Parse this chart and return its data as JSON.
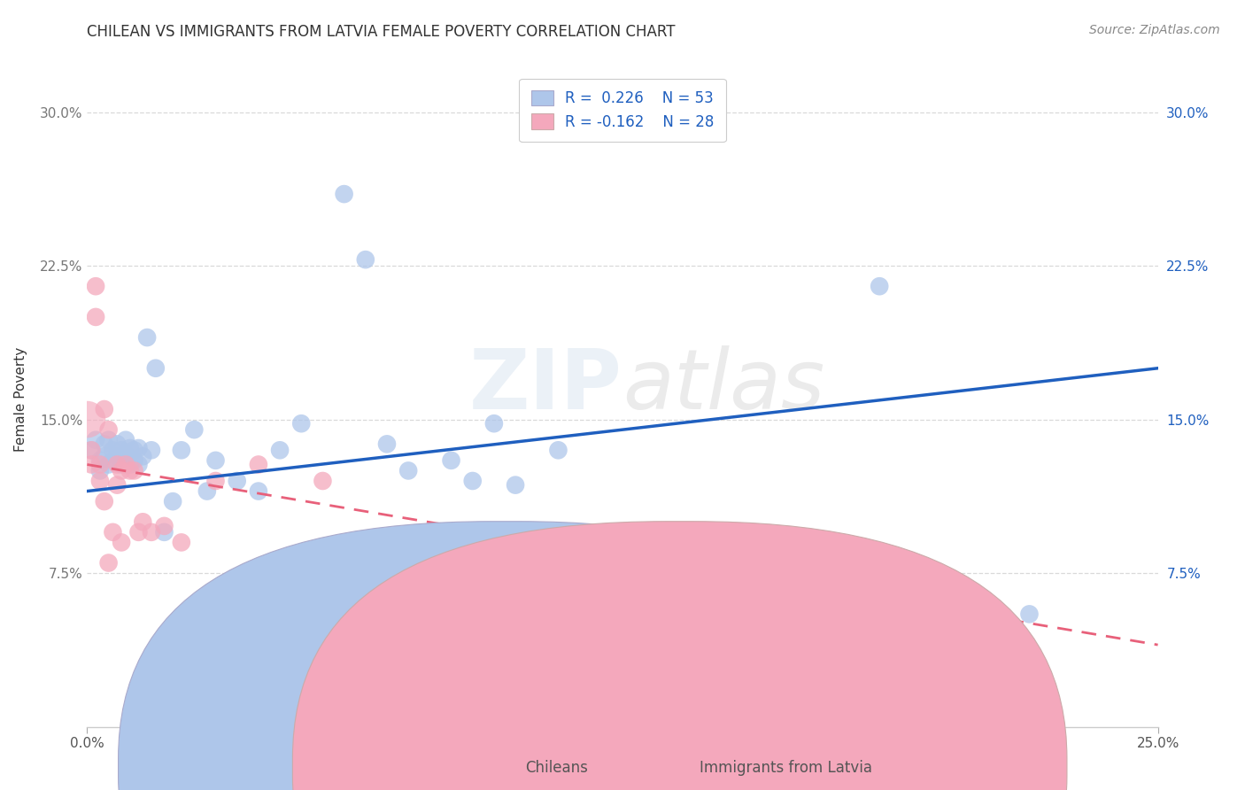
{
  "title": "CHILEAN VS IMMIGRANTS FROM LATVIA FEMALE POVERTY CORRELATION CHART",
  "source": "Source: ZipAtlas.com",
  "xlabel_chileans": "Chileans",
  "xlabel_immigrants": "Immigrants from Latvia",
  "ylabel": "Female Poverty",
  "xlim": [
    0.0,
    0.25
  ],
  "ylim": [
    0.0,
    0.32
  ],
  "xticks": [
    0.0,
    0.05,
    0.1,
    0.15,
    0.2,
    0.25
  ],
  "xtick_labels": [
    "0.0%",
    "",
    "",
    "",
    "",
    "25.0%"
  ],
  "yticks": [
    0.075,
    0.15,
    0.225,
    0.3
  ],
  "ytick_labels": [
    "7.5%",
    "15.0%",
    "22.5%",
    "30.0%"
  ],
  "blue_R": 0.226,
  "blue_N": 53,
  "pink_R": -0.162,
  "pink_N": 28,
  "blue_color": "#aec6ea",
  "pink_color": "#f4a8bc",
  "blue_line_color": "#1f5fbf",
  "pink_line_color": "#e8607a",
  "background_color": "#ffffff",
  "grid_color": "#d0d0d0",
  "watermark": "ZIPatlas",
  "blue_x": [
    0.001,
    0.002,
    0.003,
    0.003,
    0.004,
    0.004,
    0.005,
    0.005,
    0.006,
    0.006,
    0.007,
    0.007,
    0.008,
    0.008,
    0.009,
    0.009,
    0.01,
    0.01,
    0.011,
    0.011,
    0.012,
    0.012,
    0.013,
    0.014,
    0.015,
    0.016,
    0.018,
    0.02,
    0.022,
    0.025,
    0.028,
    0.03,
    0.035,
    0.04,
    0.045,
    0.05,
    0.06,
    0.065,
    0.07,
    0.075,
    0.085,
    0.09,
    0.095,
    0.1,
    0.11,
    0.115,
    0.13,
    0.145,
    0.16,
    0.175,
    0.185,
    0.2,
    0.22
  ],
  "blue_y": [
    0.135,
    0.14,
    0.13,
    0.125,
    0.138,
    0.132,
    0.14,
    0.128,
    0.135,
    0.13,
    0.138,
    0.132,
    0.135,
    0.128,
    0.14,
    0.133,
    0.136,
    0.128,
    0.135,
    0.13,
    0.136,
    0.128,
    0.132,
    0.19,
    0.135,
    0.175,
    0.095,
    0.11,
    0.135,
    0.145,
    0.115,
    0.13,
    0.12,
    0.115,
    0.135,
    0.148,
    0.26,
    0.228,
    0.138,
    0.125,
    0.13,
    0.12,
    0.148,
    0.118,
    0.135,
    0.09,
    0.085,
    0.065,
    0.065,
    0.06,
    0.215,
    0.065,
    0.055
  ],
  "pink_x": [
    0.001,
    0.001,
    0.002,
    0.002,
    0.003,
    0.003,
    0.004,
    0.004,
    0.005,
    0.005,
    0.006,
    0.007,
    0.007,
    0.008,
    0.008,
    0.009,
    0.01,
    0.011,
    0.012,
    0.013,
    0.015,
    0.018,
    0.022,
    0.03,
    0.04,
    0.055,
    0.075,
    0.085
  ],
  "pink_y": [
    0.135,
    0.128,
    0.215,
    0.2,
    0.128,
    0.12,
    0.155,
    0.11,
    0.145,
    0.08,
    0.095,
    0.128,
    0.118,
    0.125,
    0.09,
    0.128,
    0.125,
    0.125,
    0.095,
    0.1,
    0.095,
    0.098,
    0.09,
    0.12,
    0.128,
    0.12,
    0.085,
    0.083
  ],
  "blue_line_x": [
    0.0,
    0.25
  ],
  "blue_line_y": [
    0.115,
    0.175
  ],
  "pink_line_x": [
    0.0,
    0.25
  ],
  "pink_line_y": [
    0.128,
    0.04
  ],
  "title_fontsize": 12,
  "axis_fontsize": 11,
  "legend_fontsize": 12,
  "tick_fontsize": 11,
  "source_fontsize": 10
}
